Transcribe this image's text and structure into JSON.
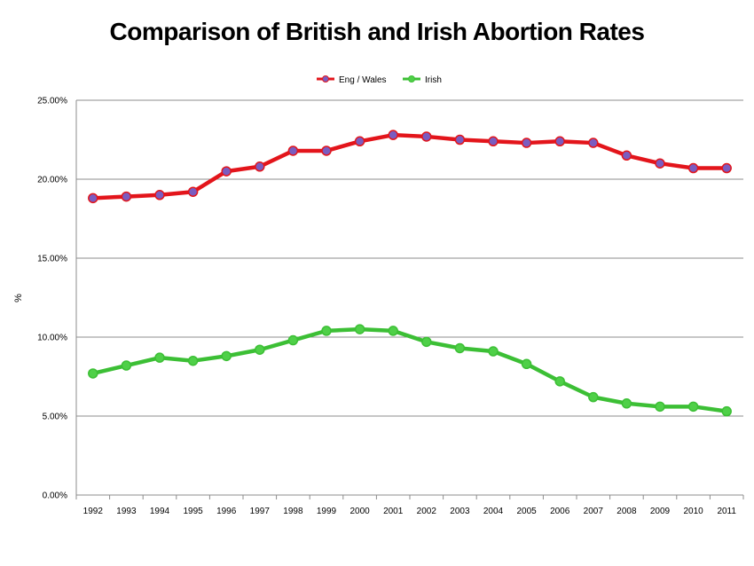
{
  "chart_data": {
    "type": "line",
    "title": "Comparison of British and Irish Abortion Rates",
    "xlabel": "",
    "ylabel": "%",
    "ylim": [
      0,
      25
    ],
    "yticks": [
      "0.00%",
      "5.00%",
      "10.00%",
      "15.00%",
      "20.00%",
      "25.00%"
    ],
    "grid": true,
    "legend_position": "top-center",
    "categories": [
      "1992",
      "1993",
      "1994",
      "1995",
      "1996",
      "1997",
      "1998",
      "1999",
      "2000",
      "2001",
      "2002",
      "2003",
      "2004",
      "2005",
      "2006",
      "2007",
      "2008",
      "2009",
      "2010",
      "2011"
    ],
    "series": [
      {
        "name": "Eng / Wales",
        "color": "#e3151b",
        "marker_color": "#7a5cc0",
        "values": [
          18.8,
          18.9,
          19.0,
          19.2,
          20.5,
          20.8,
          21.8,
          21.8,
          22.4,
          22.8,
          22.7,
          22.5,
          22.4,
          22.3,
          22.4,
          22.3,
          21.5,
          21.0,
          20.7,
          20.7
        ]
      },
      {
        "name": "Irish",
        "color": "#3cbf35",
        "marker_color": "#4fd048",
        "values": [
          7.7,
          8.2,
          8.7,
          8.5,
          8.8,
          9.2,
          9.8,
          10.4,
          10.5,
          10.4,
          9.7,
          9.3,
          9.1,
          8.3,
          7.2,
          6.2,
          5.8,
          5.6,
          5.6,
          5.3
        ]
      }
    ]
  }
}
